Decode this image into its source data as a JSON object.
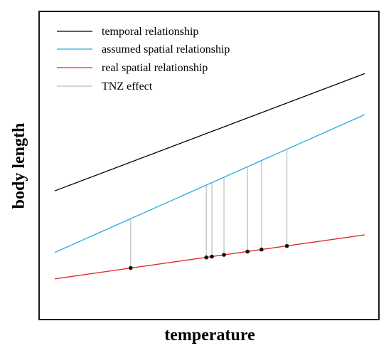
{
  "figure": {
    "ylabel": "body length",
    "xlabel": "temperature"
  },
  "legend": [
    {
      "key": "temporal",
      "label": "temporal relationship",
      "color": "#000000"
    },
    {
      "key": "assumed",
      "label": "assumed spatial relationship",
      "color": "#29abe2"
    },
    {
      "key": "real",
      "label": "real spatial relationship",
      "color": "#e0262b"
    },
    {
      "key": "tnz",
      "label": "TNZ effect",
      "color": "#bdbdbd"
    }
  ],
  "chart_data": {
    "type": "line",
    "xlabel": "temperature",
    "ylabel": "body length",
    "series": [
      {
        "name": "temporal relationship",
        "x": [
          0,
          100
        ],
        "y": [
          40,
          80
        ],
        "color": "#000000"
      },
      {
        "name": "assumed spatial relationship",
        "x": [
          0,
          100
        ],
        "y": [
          19,
          66
        ],
        "color": "#29abe2"
      },
      {
        "name": "real spatial relationship",
        "x": [
          0,
          100
        ],
        "y": [
          10,
          25
        ],
        "color": "#e0262b"
      }
    ],
    "tnz_points": [
      {
        "x": 24.5,
        "y_real": 13.7,
        "y_assumed": 30.5
      },
      {
        "x": 48.9,
        "y_real": 17.3,
        "y_assumed": 42.0
      },
      {
        "x": 50.7,
        "y_real": 17.6,
        "y_assumed": 42.8
      },
      {
        "x": 54.6,
        "y_real": 18.2,
        "y_assumed": 44.7
      },
      {
        "x": 62.2,
        "y_real": 19.3,
        "y_assumed": 48.2
      },
      {
        "x": 66.7,
        "y_real": 20.0,
        "y_assumed": 50.3
      },
      {
        "x": 74.9,
        "y_real": 21.2,
        "y_assumed": 54.2
      }
    ]
  }
}
